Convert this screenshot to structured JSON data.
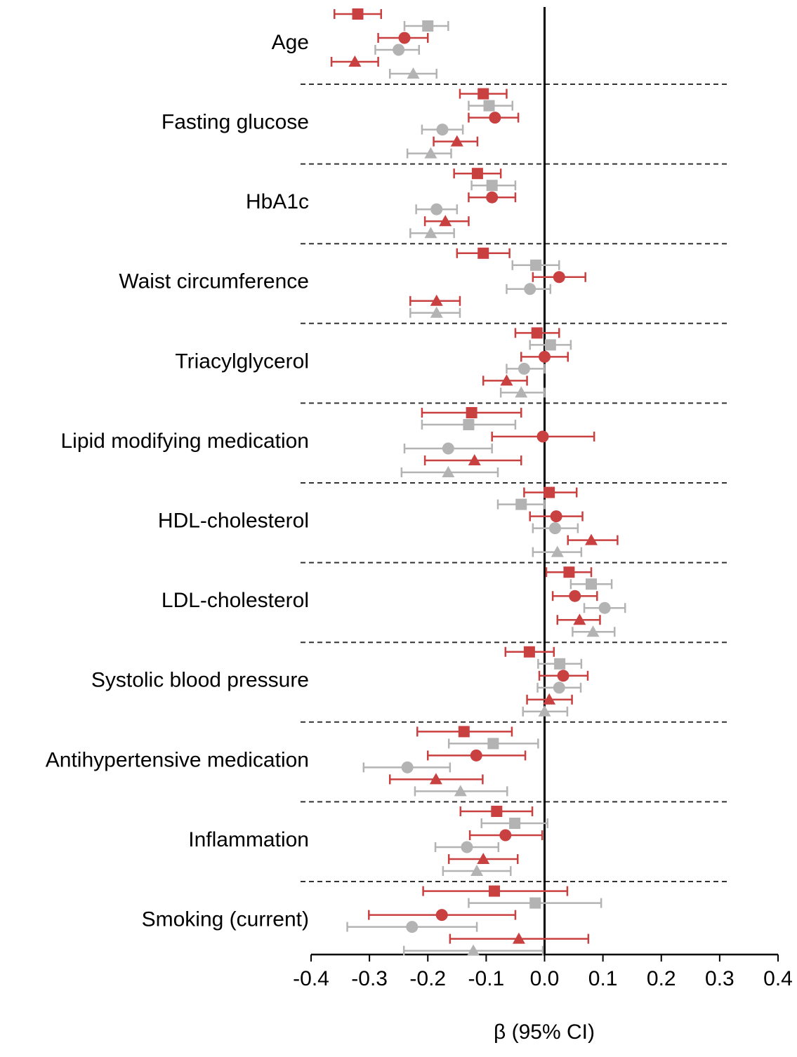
{
  "chart_data": {
    "type": "forest",
    "x_label": "β (95% CI)",
    "categories": [
      "Age",
      "Fasting glucose",
      "HbA1c",
      "Waist circumference",
      "Triacylglycerol",
      "Lipid modifying medication",
      "HDL-cholesterol",
      "LDL-cholesterol",
      "Systolic blood pressure",
      "Antihypertensive medication",
      "Inflammation",
      "Smoking (current)"
    ],
    "xlim": [
      -0.4,
      0.4
    ],
    "xticks": [
      -0.4,
      -0.3,
      -0.2,
      -0.1,
      {
        "value": 0,
        "label": "0.0"
      },
      0.1,
      0.2,
      0.3,
      0.4
    ],
    "series": [
      {
        "marker": "square",
        "color": "#c94040",
        "values": [
          -0.32,
          -0.105,
          -0.115,
          -0.105,
          -0.013,
          -0.125,
          0.008,
          0.042,
          -0.026,
          -0.138,
          -0.082,
          -0.086
        ],
        "lower": [
          -0.36,
          -0.145,
          -0.155,
          -0.15,
          -0.05,
          -0.21,
          -0.035,
          0.003,
          -0.067,
          -0.218,
          -0.144,
          -0.208
        ],
        "upper": [
          -0.28,
          -0.065,
          -0.075,
          -0.06,
          0.025,
          -0.04,
          0.055,
          0.08,
          0.016,
          -0.056,
          -0.021,
          0.039
        ]
      },
      {
        "marker": "square",
        "color": "#b3b3b3",
        "values": [
          -0.2,
          -0.095,
          -0.09,
          -0.015,
          0.01,
          -0.13,
          -0.04,
          0.08,
          0.026,
          -0.088,
          -0.051,
          -0.016
        ],
        "lower": [
          -0.24,
          -0.13,
          -0.125,
          -0.055,
          -0.025,
          -0.21,
          -0.08,
          0.045,
          -0.011,
          -0.164,
          -0.108,
          -0.13
        ],
        "upper": [
          -0.165,
          -0.055,
          -0.05,
          0.025,
          0.045,
          -0.05,
          0.0,
          0.115,
          0.063,
          -0.011,
          0.005,
          0.097
        ]
      },
      {
        "marker": "circle",
        "color": "#c94040",
        "values": [
          -0.24,
          -0.085,
          -0.09,
          0.025,
          0.0,
          -0.003,
          0.02,
          0.052,
          0.032,
          -0.117,
          -0.067,
          -0.176
        ],
        "lower": [
          -0.285,
          -0.13,
          -0.13,
          -0.02,
          -0.04,
          -0.09,
          -0.025,
          0.014,
          -0.009,
          -0.2,
          -0.128,
          -0.301
        ],
        "upper": [
          -0.2,
          -0.045,
          -0.05,
          0.07,
          0.04,
          0.085,
          0.065,
          0.09,
          0.074,
          -0.033,
          -0.004,
          -0.05
        ]
      },
      {
        "marker": "circle",
        "color": "#b3b3b3",
        "values": [
          -0.25,
          -0.175,
          -0.185,
          -0.025,
          -0.035,
          -0.165,
          0.018,
          0.103,
          0.025,
          -0.235,
          -0.133,
          -0.227
        ],
        "lower": [
          -0.29,
          -0.21,
          -0.22,
          -0.065,
          -0.065,
          -0.24,
          -0.02,
          0.068,
          -0.012,
          -0.31,
          -0.187,
          -0.338
        ],
        "upper": [
          -0.215,
          -0.14,
          -0.15,
          0.01,
          0.0,
          -0.09,
          0.057,
          0.138,
          0.062,
          -0.162,
          -0.079,
          -0.116
        ]
      },
      {
        "marker": "triangle",
        "color": "#c94040",
        "values": [
          -0.325,
          -0.15,
          -0.17,
          -0.185,
          -0.065,
          -0.12,
          0.08,
          0.06,
          0.008,
          -0.186,
          -0.105,
          -0.044
        ],
        "lower": [
          -0.365,
          -0.19,
          -0.205,
          -0.23,
          -0.105,
          -0.205,
          0.04,
          0.022,
          -0.03,
          -0.265,
          -0.164,
          -0.162
        ],
        "upper": [
          -0.285,
          -0.115,
          -0.13,
          -0.145,
          -0.03,
          -0.04,
          0.125,
          0.095,
          0.047,
          -0.106,
          -0.046,
          0.075
        ]
      },
      {
        "marker": "triangle",
        "color": "#b3b3b3",
        "values": [
          -0.225,
          -0.195,
          -0.195,
          -0.185,
          -0.04,
          -0.165,
          0.022,
          0.083,
          0.0,
          -0.144,
          -0.116,
          -0.122
        ],
        "lower": [
          -0.265,
          -0.235,
          -0.23,
          -0.23,
          -0.075,
          -0.245,
          -0.02,
          0.048,
          -0.037,
          -0.222,
          -0.174,
          -0.241
        ],
        "upper": [
          -0.185,
          -0.16,
          -0.155,
          -0.145,
          0.0,
          -0.08,
          0.063,
          0.12,
          0.039,
          -0.064,
          -0.058,
          -0.003
        ]
      }
    ]
  }
}
